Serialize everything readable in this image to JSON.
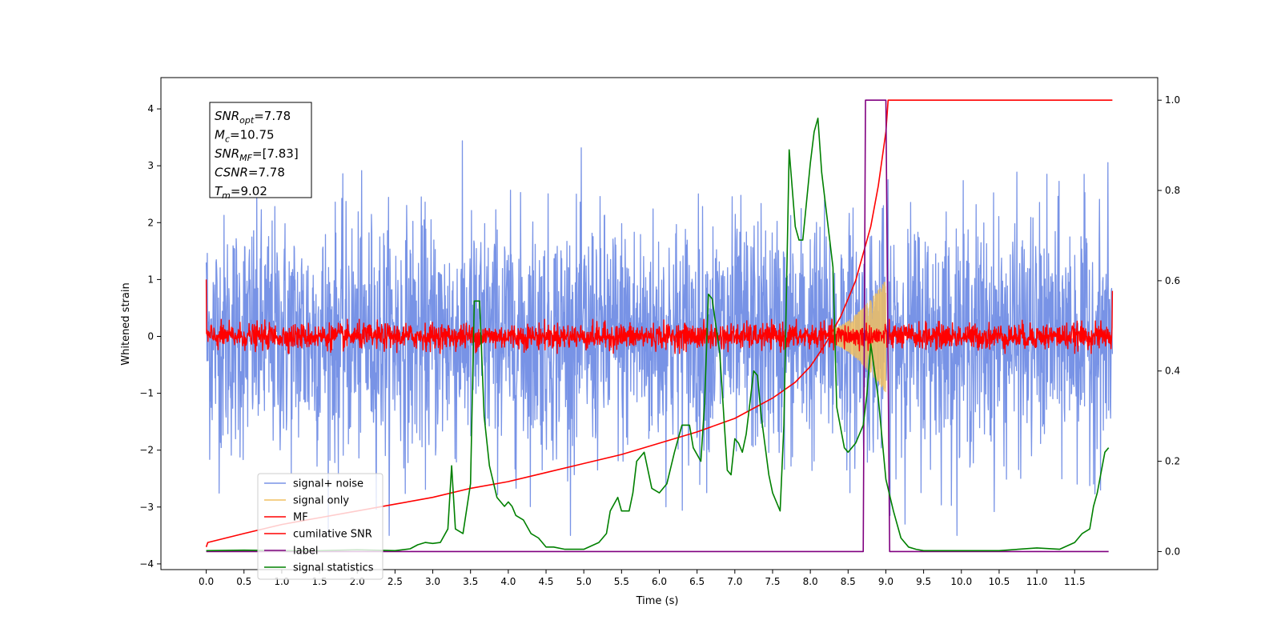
{
  "chart_data": {
    "type": "line",
    "title": "",
    "xlabel": "Time (s)",
    "ylabel": "Whitened strain",
    "ylabel_right": "",
    "xlim": [
      -0.6,
      12.6
    ],
    "ylim": [
      -4.1,
      4.55
    ],
    "ylim_right": [
      -0.04,
      1.05
    ],
    "x_ticks": [
      "0.0",
      "0.5",
      "1.0",
      "1.5",
      "2.0",
      "2.5",
      "3.0",
      "3.5",
      "4.0",
      "4.5",
      "5.0",
      "5.5",
      "6.0",
      "6.5",
      "7.0",
      "7.5",
      "8.0",
      "8.5",
      "9.0",
      "9.5",
      "10.0",
      "10.5",
      "11.0",
      "11.5"
    ],
    "y_ticks": [
      "4",
      "3",
      "2",
      "1",
      "0",
      "−1",
      "−2",
      "−3",
      "−4"
    ],
    "y_ticks_right": [
      "1.0",
      "0.8",
      "0.6",
      "0.4",
      "0.2",
      "0.0"
    ],
    "grid": false,
    "legend_position": "lower-left",
    "info_box": {
      "position": "upper-left",
      "lines": [
        {
          "label": "SNR",
          "sub": "opt",
          "value": "=7.78"
        },
        {
          "label": "M",
          "sub": "c",
          "value": "=10.75"
        },
        {
          "label": "SNR",
          "sub": "MF",
          "value": "=[7.83]"
        },
        {
          "label": "CSNR",
          "sub": "",
          "value": "=7.78"
        },
        {
          "label": "T",
          "sub": "m",
          "value": "=9.02"
        }
      ]
    },
    "series": [
      {
        "name": "signal+ noise",
        "color": "#7893e6",
        "axis": "left",
        "style": "noise",
        "amplitude_range": [
          -3.5,
          4.1
        ],
        "x_range": [
          0,
          12
        ]
      },
      {
        "name": "signal only",
        "color": "#f0c060",
        "axis": "left",
        "style": "chirp",
        "x_range": [
          8.3,
          9.0
        ],
        "peak_amplitude": 1.0
      },
      {
        "name": "MF",
        "color": "#ff0000",
        "axis": "left",
        "style": "noise",
        "amplitude_range": [
          -0.3,
          0.3
        ],
        "x_range": [
          0,
          12
        ]
      },
      {
        "name": "cumilative SNR",
        "color": "#ff0000",
        "axis": "right",
        "x": [
          0,
          0.02,
          0.5,
          1.0,
          1.5,
          2.0,
          2.5,
          3.0,
          3.5,
          4.0,
          4.5,
          5.0,
          5.5,
          6.0,
          6.5,
          7.0,
          7.5,
          7.8,
          8.0,
          8.2,
          8.4,
          8.6,
          8.8,
          8.9,
          9.0,
          9.03,
          12.0
        ],
        "values": [
          0.01,
          0.02,
          0.04,
          0.06,
          0.075,
          0.09,
          0.105,
          0.12,
          0.14,
          0.155,
          0.175,
          0.195,
          0.215,
          0.24,
          0.265,
          0.295,
          0.34,
          0.375,
          0.41,
          0.46,
          0.52,
          0.6,
          0.72,
          0.81,
          0.93,
          1.0,
          1.0
        ]
      },
      {
        "name": "label",
        "color": "#800080",
        "axis": "right",
        "x": [
          0,
          8.7,
          8.73,
          8.98,
          9.0,
          9.05,
          11.95
        ],
        "values": [
          0,
          0,
          1,
          1,
          1,
          0,
          0
        ]
      },
      {
        "name": "signal statistics",
        "color": "#008000",
        "axis": "right",
        "x": [
          0,
          0.5,
          1.0,
          1.5,
          2.0,
          2.5,
          2.7,
          2.8,
          2.9,
          3.0,
          3.1,
          3.2,
          3.25,
          3.3,
          3.4,
          3.5,
          3.55,
          3.62,
          3.68,
          3.75,
          3.85,
          3.95,
          4.0,
          4.05,
          4.1,
          4.2,
          4.3,
          4.4,
          4.5,
          4.6,
          4.75,
          5.0,
          5.2,
          5.3,
          5.35,
          5.45,
          5.5,
          5.6,
          5.65,
          5.7,
          5.8,
          5.9,
          6.0,
          6.1,
          6.2,
          6.3,
          6.4,
          6.45,
          6.55,
          6.6,
          6.65,
          6.7,
          6.75,
          6.8,
          6.9,
          6.95,
          7.0,
          7.05,
          7.1,
          7.15,
          7.25,
          7.3,
          7.35,
          7.45,
          7.5,
          7.6,
          7.65,
          7.72,
          7.8,
          7.85,
          7.9,
          8.0,
          8.05,
          8.1,
          8.15,
          8.3,
          8.35,
          8.45,
          8.5,
          8.6,
          8.7,
          8.75,
          8.8,
          8.9,
          9.0,
          9.1,
          9.15,
          9.2,
          9.3,
          9.4,
          9.5,
          10.0,
          10.5,
          11.0,
          11.3,
          11.5,
          11.6,
          11.7,
          11.75,
          11.8,
          11.9,
          11.95
        ],
        "values": [
          0.002,
          0.003,
          0.002,
          0.002,
          0.004,
          0.002,
          0.006,
          0.015,
          0.02,
          0.018,
          0.02,
          0.05,
          0.19,
          0.05,
          0.04,
          0.15,
          0.555,
          0.555,
          0.3,
          0.19,
          0.12,
          0.1,
          0.11,
          0.1,
          0.08,
          0.07,
          0.04,
          0.03,
          0.01,
          0.01,
          0.005,
          0.005,
          0.02,
          0.04,
          0.09,
          0.12,
          0.09,
          0.09,
          0.13,
          0.2,
          0.22,
          0.14,
          0.13,
          0.15,
          0.22,
          0.28,
          0.28,
          0.23,
          0.2,
          0.33,
          0.57,
          0.56,
          0.5,
          0.44,
          0.18,
          0.17,
          0.25,
          0.24,
          0.22,
          0.26,
          0.4,
          0.39,
          0.3,
          0.17,
          0.13,
          0.09,
          0.28,
          0.89,
          0.72,
          0.69,
          0.69,
          0.86,
          0.93,
          0.96,
          0.84,
          0.63,
          0.32,
          0.23,
          0.22,
          0.24,
          0.28,
          0.35,
          0.46,
          0.34,
          0.16,
          0.09,
          0.06,
          0.03,
          0.01,
          0.005,
          0.002,
          0.002,
          0.002,
          0.008,
          0.005,
          0.02,
          0.04,
          0.05,
          0.1,
          0.13,
          0.22,
          0.23
        ]
      }
    ]
  }
}
